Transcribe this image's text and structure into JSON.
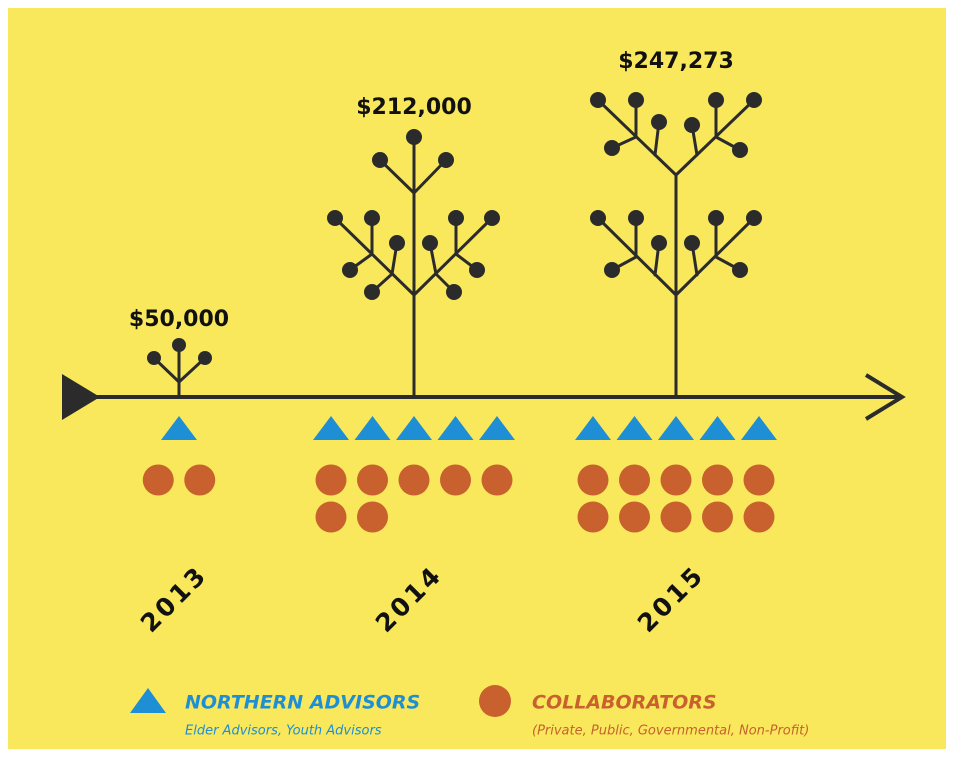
{
  "years": [
    {
      "year": "2013",
      "amount": "$50,000",
      "advisors": 1,
      "collaborators": 2
    },
    {
      "year": "2014",
      "amount": "$212,000",
      "advisors": 5,
      "collaborators": 7
    },
    {
      "year": "2015",
      "amount": "$247,273",
      "advisors": 5,
      "collaborators": 10
    }
  ],
  "legend": {
    "advisors": {
      "label": "NORTHERN ADVISORS",
      "sub": "Elder Advisors, Youth Advisors"
    },
    "collaborators": {
      "label": "COLLABORATORS",
      "sub": "(Private, Public, Governmental, Non-Profit)"
    }
  }
}
